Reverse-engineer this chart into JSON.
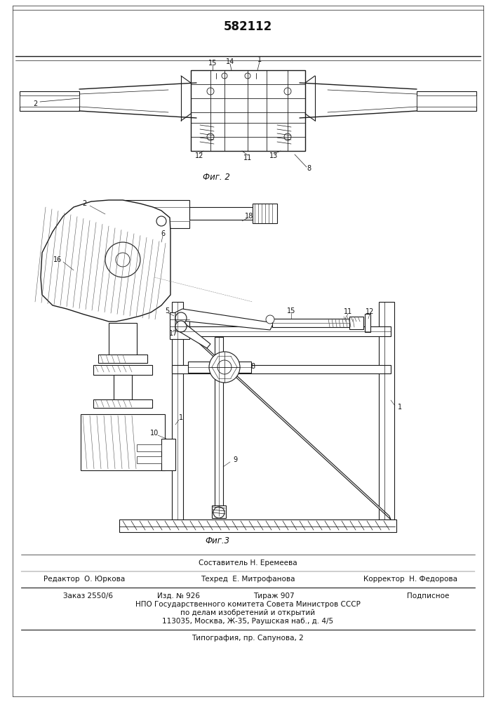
{
  "patent_number": "582112",
  "background_color": "#ffffff",
  "fig2_caption": "Фиг. 2",
  "fig3_caption": "Фиг.3",
  "footer": {
    "line1_center": "Составитель Н. Еремеева",
    "line2_left": "Редактор  О. Юркова",
    "line2_center": "Техред  Е. Митрофанова",
    "line2_right": "Корректор  Н. Федорова",
    "line3_left": "Заказ 2550/6",
    "line3_center1": "Изд. № 926",
    "line3_center2": "Тираж 907",
    "line3_right": "Подписное",
    "line4": "НПО Государственного комитета Совета Министров СССР",
    "line5": "по делам изобретений и открытий",
    "line6": "113035, Москва, Ж-35, Раушская наб., д. 4/5",
    "line7": "Типография, пр. Сапунова, 2"
  }
}
